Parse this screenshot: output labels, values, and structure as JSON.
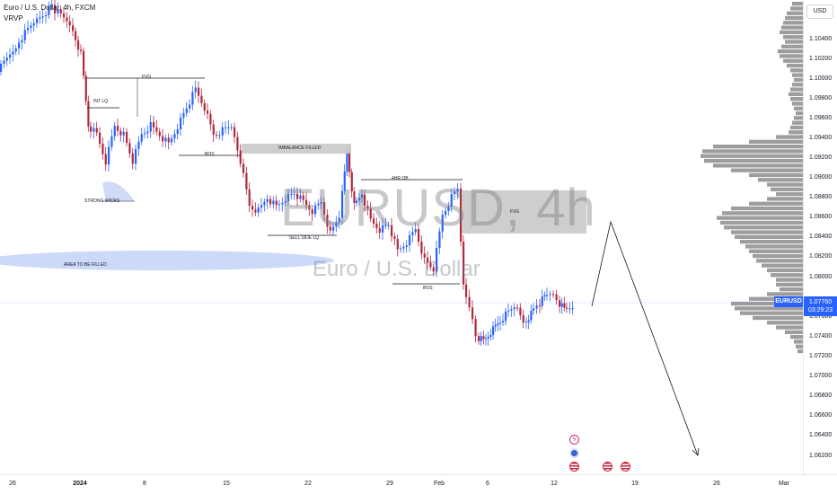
{
  "header": {
    "symbol_title": "Euro / U.S. Dollar, 4h, FXCM",
    "indicator": "VRVP"
  },
  "watermark": {
    "symbol": "EURUSD, 4h",
    "name": "Euro / U.S. Dollar"
  },
  "price_axis": {
    "currency_button": "USD",
    "ticks": [
      "1.10400",
      "1.10200",
      "1.10000",
      "1.09800",
      "1.09600",
      "1.09400",
      "1.09200",
      "1.09000",
      "1.08800",
      "1.08600",
      "1.08400",
      "1.08200",
      "1.08000",
      "1.07600",
      "1.07400",
      "1.07200",
      "1.07000",
      "1.06800",
      "1.06600",
      "1.06400",
      "1.06200"
    ],
    "current_price": "1.07760",
    "countdown": "03:29:23"
  },
  "symbol_badge": "EURUSD",
  "time_axis": {
    "ticks": [
      {
        "label": "26",
        "bold": false
      },
      {
        "label": "2024",
        "bold": true
      },
      {
        "label": "8",
        "bold": false
      },
      {
        "label": "15",
        "bold": false
      },
      {
        "label": "22",
        "bold": false
      },
      {
        "label": "29",
        "bold": false
      },
      {
        "label": "Feb",
        "bold": false
      },
      {
        "label": "6",
        "bold": false
      },
      {
        "label": "12",
        "bold": false
      },
      {
        "label": "19",
        "bold": false
      },
      {
        "label": "26",
        "bold": false
      },
      {
        "label": "Mar",
        "bold": false
      }
    ]
  },
  "annotations": {
    "fvg_top": "FVG",
    "int_lq": "INT LQ",
    "strong_wicks": "STRONG WICKS",
    "bos_left": "BOS",
    "imbalance": "IMBALANCE FILLED",
    "sell_side": "SELL SIDE LQ",
    "ob_4hr": "4HR OB",
    "fvg_right": "FVG",
    "bos_right": "BOS",
    "area": "AREA TO BE FILLED"
  },
  "colors": {
    "bull": "#2962ff",
    "bear": "#b2283f",
    "volume_profile": "#8c8c8c",
    "accent": "#2962ff"
  },
  "event_icons": [
    "flash-icon",
    "earnings-icon",
    "us-flag-icon",
    "us-flag-icon",
    "us-flag-icon"
  ]
}
